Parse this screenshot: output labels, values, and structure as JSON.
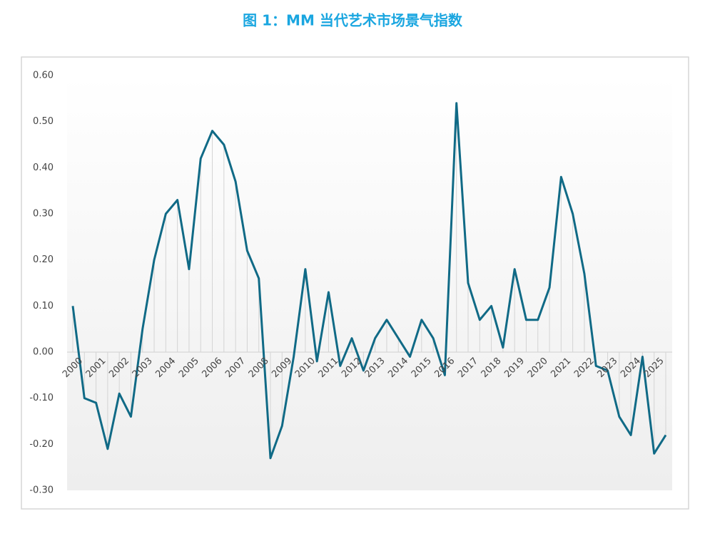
{
  "chart_data": {
    "type": "line",
    "title": "图 1：MM 当代艺术市场景气指数",
    "categories": [
      "2000",
      null,
      "2001",
      null,
      "2002",
      null,
      "2003",
      null,
      "2004",
      null,
      "2005",
      null,
      "2006",
      null,
      "2007",
      null,
      "2008",
      null,
      "2009",
      null,
      "2010",
      null,
      "2011",
      null,
      "2012",
      null,
      "2013",
      null,
      "2014",
      null,
      "2015",
      null,
      "2016",
      null,
      "2017",
      null,
      "2018",
      null,
      "2019",
      null,
      "2020",
      null,
      "2021",
      null,
      "2022",
      null,
      "2023",
      null,
      "2024",
      null,
      "2025",
      null
    ],
    "series": [
      {
        "color": "#106a86",
        "values": [
          0.1,
          -0.1,
          -0.11,
          -0.21,
          -0.09,
          -0.14,
          0.05,
          0.2,
          0.3,
          0.33,
          0.18,
          0.42,
          0.48,
          0.45,
          0.37,
          0.22,
          0.16,
          -0.23,
          -0.16,
          -0.01,
          0.18,
          -0.02,
          0.13,
          -0.03,
          0.03,
          -0.04,
          0.03,
          0.07,
          0.03,
          -0.01,
          0.07,
          0.03,
          -0.05,
          0.54,
          0.15,
          0.07,
          0.1,
          0.01,
          0.18,
          0.07,
          0.07,
          0.14,
          0.38,
          0.3,
          0.17,
          -0.03,
          -0.04,
          -0.14,
          -0.18,
          -0.01,
          -0.22,
          -0.18
        ]
      }
    ],
    "ylim": [
      -0.3,
      0.6
    ],
    "yticks": [
      {
        "value": -0.3,
        "label": "-0.30"
      },
      {
        "value": -0.2,
        "label": "-0.20"
      },
      {
        "value": -0.1,
        "label": "-0.10"
      },
      {
        "value": 0,
        "label": "0.00"
      },
      {
        "value": 0.1,
        "label": "0.10"
      },
      {
        "value": 0.2,
        "label": "0.20"
      },
      {
        "value": 0.3,
        "label": "0.30"
      },
      {
        "value": 0.4,
        "label": "0.40"
      },
      {
        "value": 0.5,
        "label": "0.50"
      },
      {
        "value": 0.6,
        "label": "0.60"
      }
    ],
    "drop_lines": true
  }
}
